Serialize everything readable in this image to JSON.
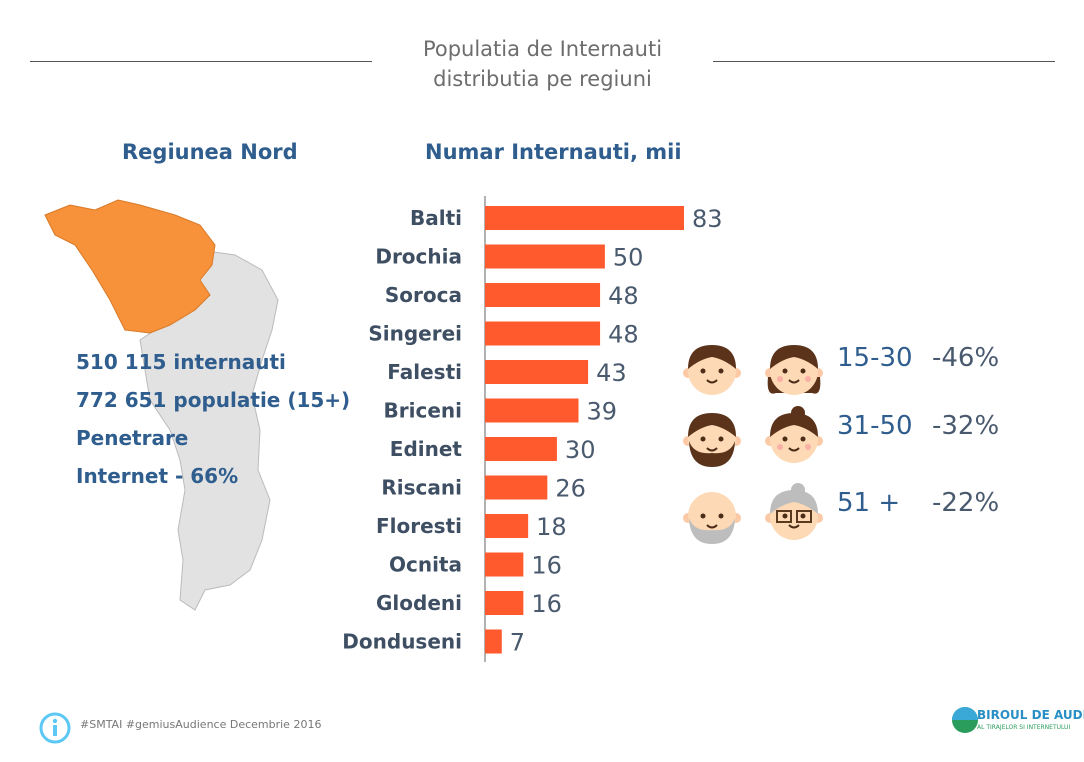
{
  "title": [
    "Populatia de Internauti",
    "distributia pe regiuni"
  ],
  "region": {
    "title": "Regiunea Nord",
    "stats": [
      "510 115 internauti",
      "772 651 populatie (15+)",
      "Penetrare",
      "Internet - 66%"
    ]
  },
  "chart_data": {
    "type": "bar",
    "title": "Numar Internauti, mii",
    "xlabel": "",
    "ylabel": "",
    "categories": [
      "Balti",
      "Drochia",
      "Soroca",
      "Singerei",
      "Falesti",
      "Briceni",
      "Edinet",
      "Riscani",
      "Floresti",
      "Ocnita",
      "Glodeni",
      "Donduseni"
    ],
    "values": [
      83,
      50,
      48,
      48,
      43,
      39,
      30,
      26,
      18,
      16,
      16,
      7
    ],
    "xlim": [
      0,
      90
    ],
    "color": "#ff5a2e"
  },
  "ages": [
    {
      "range": "15-30",
      "pct": "-46%"
    },
    {
      "range": "31-50",
      "pct": "-32%"
    },
    {
      "range": "51 +",
      "pct": "-22%"
    }
  ],
  "footer": {
    "source": "#SMTAI #gemiusAudience Decembrie 2016",
    "logo_text": [
      "BATi",
      "BIROUL DE AUDIT",
      "AL TIRAJELOR SI INTERNETULUI"
    ]
  }
}
